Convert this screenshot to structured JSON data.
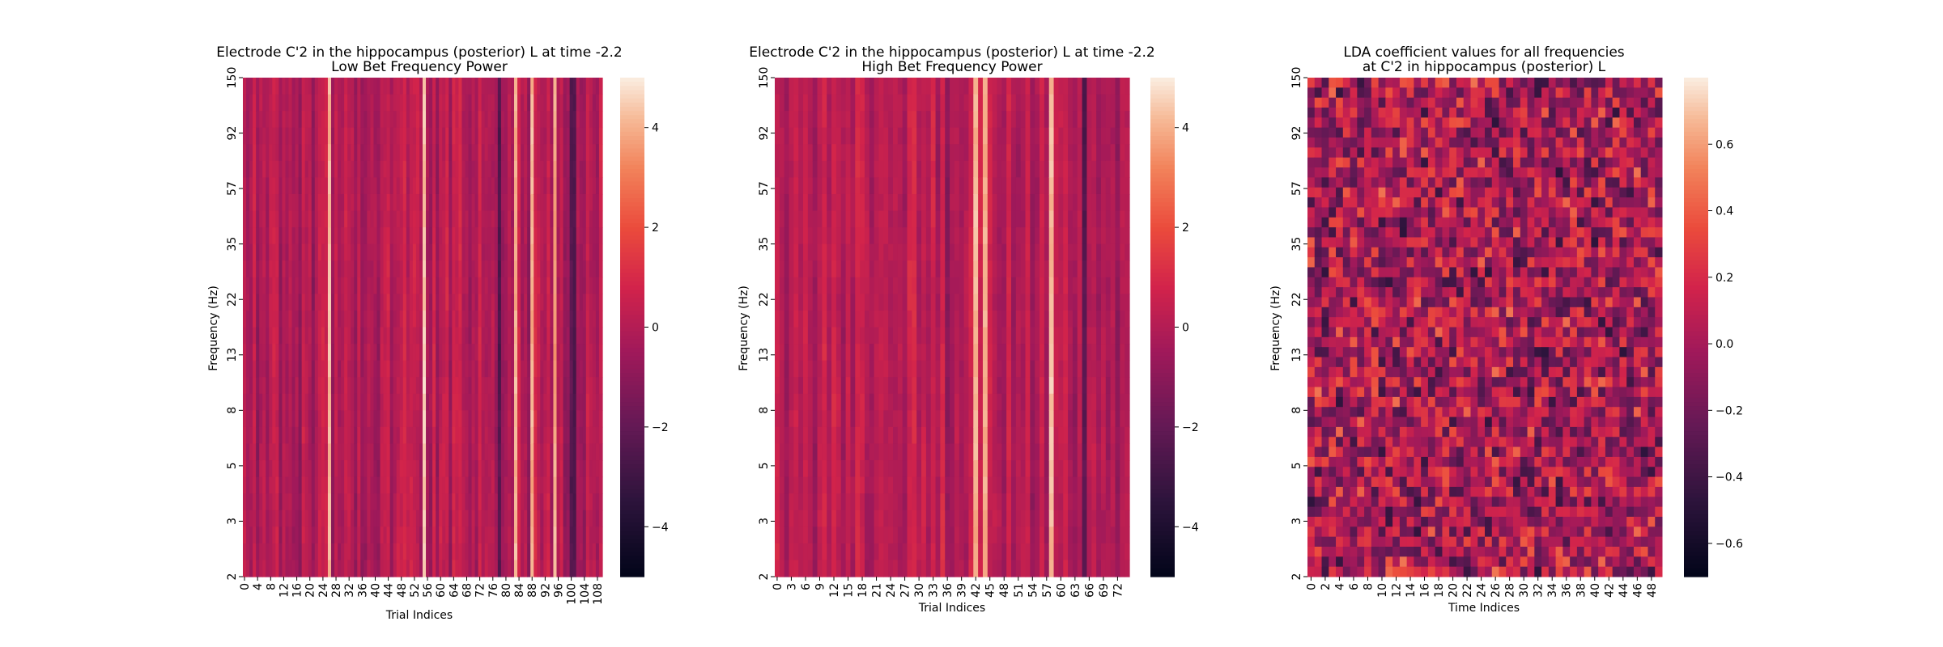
{
  "chart_data": [
    {
      "type": "heatmap",
      "title": "Electrode C'2 in the hippocampus (posterior) L at time -2.2",
      "subtitle": "Low Bet Frequency Power",
      "xlabel": "Trial Indices",
      "ylabel": "Frequency (Hz)",
      "x_ticks": [
        "0",
        "4",
        "8",
        "12",
        "16",
        "20",
        "24",
        "28",
        "32",
        "36",
        "40",
        "44",
        "48",
        "52",
        "56",
        "60",
        "64",
        "68",
        "72",
        "76",
        "80",
        "84",
        "88",
        "92",
        "96",
        "100",
        "104",
        "108"
      ],
      "y_ticks": [
        "150",
        "92",
        "57",
        "35",
        "22",
        "13",
        "8",
        "5",
        "3",
        "2"
      ],
      "n_columns": 110,
      "colorbar_ticks": [
        "4",
        "2",
        "0",
        "−2",
        "−4"
      ],
      "colorbar_range": [
        -5,
        5
      ],
      "colormap": "rocket",
      "bright_columns": [
        26,
        55,
        83,
        88,
        95
      ],
      "dark_columns": [
        100,
        101,
        78
      ]
    },
    {
      "type": "heatmap",
      "title": "Electrode C'2 in the hippocampus (posterior) L at time -2.2",
      "subtitle": "High Bet Frequency Power",
      "xlabel": "Trial Indices",
      "ylabel": "Frequency (Hz)",
      "x_ticks": [
        "0",
        "3",
        "6",
        "9",
        "12",
        "15",
        "18",
        "21",
        "24",
        "27",
        "30",
        "33",
        "36",
        "39",
        "42",
        "45",
        "48",
        "51",
        "54",
        "57",
        "60",
        "63",
        "66",
        "69",
        "72"
      ],
      "y_ticks": [
        "150",
        "92",
        "57",
        "35",
        "22",
        "13",
        "8",
        "5",
        "3",
        "2"
      ],
      "n_columns": 75,
      "colorbar_ticks": [
        "4",
        "2",
        "0",
        "−2",
        "−4"
      ],
      "colorbar_range": [
        -5,
        5
      ],
      "colormap": "rocket",
      "bright_columns": [
        42,
        44,
        58
      ],
      "dark_columns": [
        65
      ]
    },
    {
      "type": "heatmap",
      "title": "LDA coefficient values for all frequencies",
      "subtitle": "at C'2 in hippocampus (posterior) L",
      "xlabel": "Time Indices",
      "ylabel": "Frequency (Hz)",
      "x_ticks": [
        "0",
        "2",
        "4",
        "6",
        "8",
        "10",
        "12",
        "14",
        "16",
        "18",
        "20",
        "22",
        "24",
        "26",
        "28",
        "30",
        "32",
        "34",
        "36",
        "38",
        "40",
        "42",
        "44",
        "46",
        "48"
      ],
      "y_ticks": [
        "150",
        "92",
        "57",
        "35",
        "22",
        "13",
        "8",
        "5",
        "3",
        "2"
      ],
      "n_columns": 50,
      "n_rows": 50,
      "colorbar_ticks": [
        "0.6",
        "0.4",
        "0.2",
        "0.0",
        "−0.2",
        "−0.4",
        "−0.6"
      ],
      "colorbar_range": [
        -0.7,
        0.8
      ],
      "colormap": "rocket"
    }
  ]
}
